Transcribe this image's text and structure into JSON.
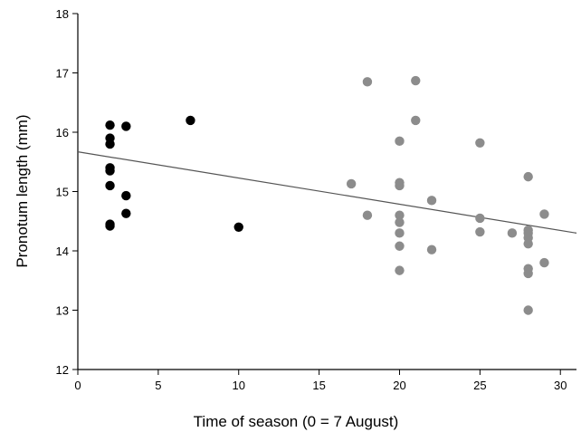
{
  "chart_data": {
    "type": "scatter",
    "xlabel": "Time of season (0 = 7 August)",
    "ylabel": "Pronotum length (mm)",
    "xlim": [
      0,
      31
    ],
    "ylim": [
      12,
      18
    ],
    "xticks": [
      0,
      5,
      10,
      15,
      20,
      25,
      30
    ],
    "yticks": [
      12,
      13,
      14,
      15,
      16,
      17,
      18
    ],
    "grid": false,
    "legend": "none",
    "series": [
      {
        "color": "#000000",
        "points": [
          [
            2,
            16.12
          ],
          [
            2,
            15.9
          ],
          [
            2,
            15.8
          ],
          [
            2,
            15.4
          ],
          [
            2,
            15.35
          ],
          [
            2,
            15.1
          ],
          [
            2,
            14.45
          ],
          [
            2,
            14.42
          ],
          [
            3,
            16.1
          ],
          [
            3,
            14.93
          ],
          [
            3,
            14.63
          ],
          [
            7,
            16.2
          ],
          [
            10,
            14.4
          ]
        ]
      },
      {
        "color": "#8c8c8c",
        "points": [
          [
            17,
            15.13
          ],
          [
            18,
            16.85
          ],
          [
            18,
            14.6
          ],
          [
            20,
            15.85
          ],
          [
            20,
            15.15
          ],
          [
            20,
            15.1
          ],
          [
            20,
            14.6
          ],
          [
            20,
            14.48
          ],
          [
            20,
            14.3
          ],
          [
            20,
            14.08
          ],
          [
            20,
            13.67
          ],
          [
            21,
            16.87
          ],
          [
            21,
            16.2
          ],
          [
            22,
            14.85
          ],
          [
            22,
            14.02
          ],
          [
            25,
            15.82
          ],
          [
            25,
            14.55
          ],
          [
            25,
            14.32
          ],
          [
            27,
            14.3
          ],
          [
            28,
            15.25
          ],
          [
            28,
            14.35
          ],
          [
            28,
            14.3
          ],
          [
            28,
            14.22
          ],
          [
            28,
            14.12
          ],
          [
            28,
            13.7
          ],
          [
            28,
            13.62
          ],
          [
            28,
            13.0
          ],
          [
            29,
            14.62
          ],
          [
            29,
            13.8
          ]
        ]
      }
    ],
    "trendline": {
      "x": [
        0,
        31
      ],
      "y": [
        15.67,
        14.3
      ],
      "color": "#555555"
    }
  }
}
